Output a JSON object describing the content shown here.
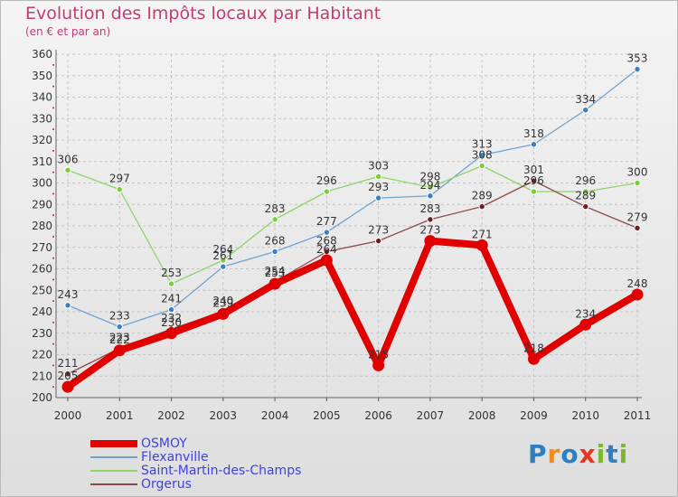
{
  "title": "Evolution des Impôts locaux par Habitant",
  "subtitle": "(en € et par an)",
  "brand": {
    "chars": [
      "P",
      "r",
      "o",
      "x",
      "i",
      "t",
      "i"
    ],
    "colors": [
      "#2d7fc1",
      "#f08a24",
      "#2d7fc1",
      "#e8361f",
      "#7cb829",
      "#2d7fc1",
      "#7cb829"
    ]
  },
  "chart_data": {
    "type": "line",
    "title": "Evolution des Impôts locaux par Habitant",
    "subtitle": "(en € et par an)",
    "xlabel": "",
    "ylabel": "",
    "categories": [
      "2000",
      "2001",
      "2002",
      "2003",
      "2004",
      "2005",
      "2006",
      "2007",
      "2008",
      "2009",
      "2010",
      "2011"
    ],
    "ylim": [
      200,
      360
    ],
    "yticks": [
      200,
      210,
      220,
      230,
      240,
      250,
      260,
      270,
      280,
      290,
      300,
      310,
      320,
      330,
      340,
      350,
      360
    ],
    "grid": true,
    "legend_position": "bottom-left",
    "series": [
      {
        "name": "OSMOY",
        "color": "#e00000",
        "dot": "#e00000",
        "thick": true,
        "values": [
          205,
          222,
          230,
          239,
          253,
          264,
          215,
          273,
          271,
          218,
          234,
          248
        ],
        "labels": [
          "205",
          "222",
          "230",
          "239",
          "253",
          "264",
          "215",
          "273",
          "271",
          "218",
          "234",
          "248"
        ]
      },
      {
        "name": "Flexanville",
        "color": "#6fa3cf",
        "dot": "#3b7ec2",
        "thick": false,
        "values": [
          243,
          233,
          241,
          261,
          268,
          277,
          293,
          294,
          313,
          318,
          334,
          353
        ],
        "labels": [
          "243",
          "233",
          "241",
          "261",
          "268",
          "277",
          "293",
          "294",
          "313",
          "318",
          "334",
          "353"
        ]
      },
      {
        "name": "Saint-Martin-des-Champs",
        "color": "#8ed46a",
        "dot": "#7ccc3a",
        "thick": false,
        "values": [
          306,
          297,
          253,
          264,
          283,
          296,
          303,
          298,
          308,
          296,
          296,
          300
        ],
        "labels": [
          "306",
          "297",
          "253",
          "264",
          "283",
          "296",
          "303",
          "298",
          "308",
          "296",
          "296",
          "300"
        ]
      },
      {
        "name": "Orgerus",
        "color": "#8b4a4a",
        "dot": "#6a2020",
        "thick": false,
        "values": [
          211,
          223,
          232,
          240,
          254,
          268,
          273,
          283,
          289,
          301,
          289,
          279
        ],
        "labels": [
          "211",
          "223",
          "232",
          "240",
          "254",
          "268",
          "273",
          "283",
          "289",
          "301",
          "289",
          "279"
        ]
      }
    ]
  }
}
